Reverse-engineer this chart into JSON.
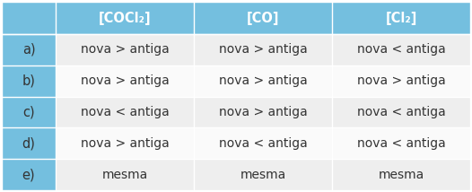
{
  "header": [
    "[COCl₂]",
    "[CO]",
    "[Cl₂]"
  ],
  "rows": [
    [
      "a)",
      "nova > antiga",
      "nova > antiga",
      "nova < antiga"
    ],
    [
      "b)",
      "nova > antiga",
      "nova > antiga",
      "nova > antiga"
    ],
    [
      "c)",
      "nova < antiga",
      "nova > antiga",
      "nova < antiga"
    ],
    [
      "d)",
      "nova > antiga",
      "nova < antiga",
      "nova < antiga"
    ],
    [
      "e)",
      "mesma",
      "mesma",
      "mesma"
    ]
  ],
  "header_bg": "#74BFDF",
  "row_label_bg": "#74BFDF",
  "row_even_bg": "#EEEEEE",
  "row_odd_bg": "#FAFAFA",
  "header_text_color": "#FFFFFF",
  "row_label_text_color": "#333333",
  "cell_text_color": "#333333",
  "header_fontsize": 10.5,
  "cell_fontsize": 10,
  "label_fontsize": 10.5,
  "fig_width": 5.26,
  "fig_height": 2.14,
  "dpi": 100
}
